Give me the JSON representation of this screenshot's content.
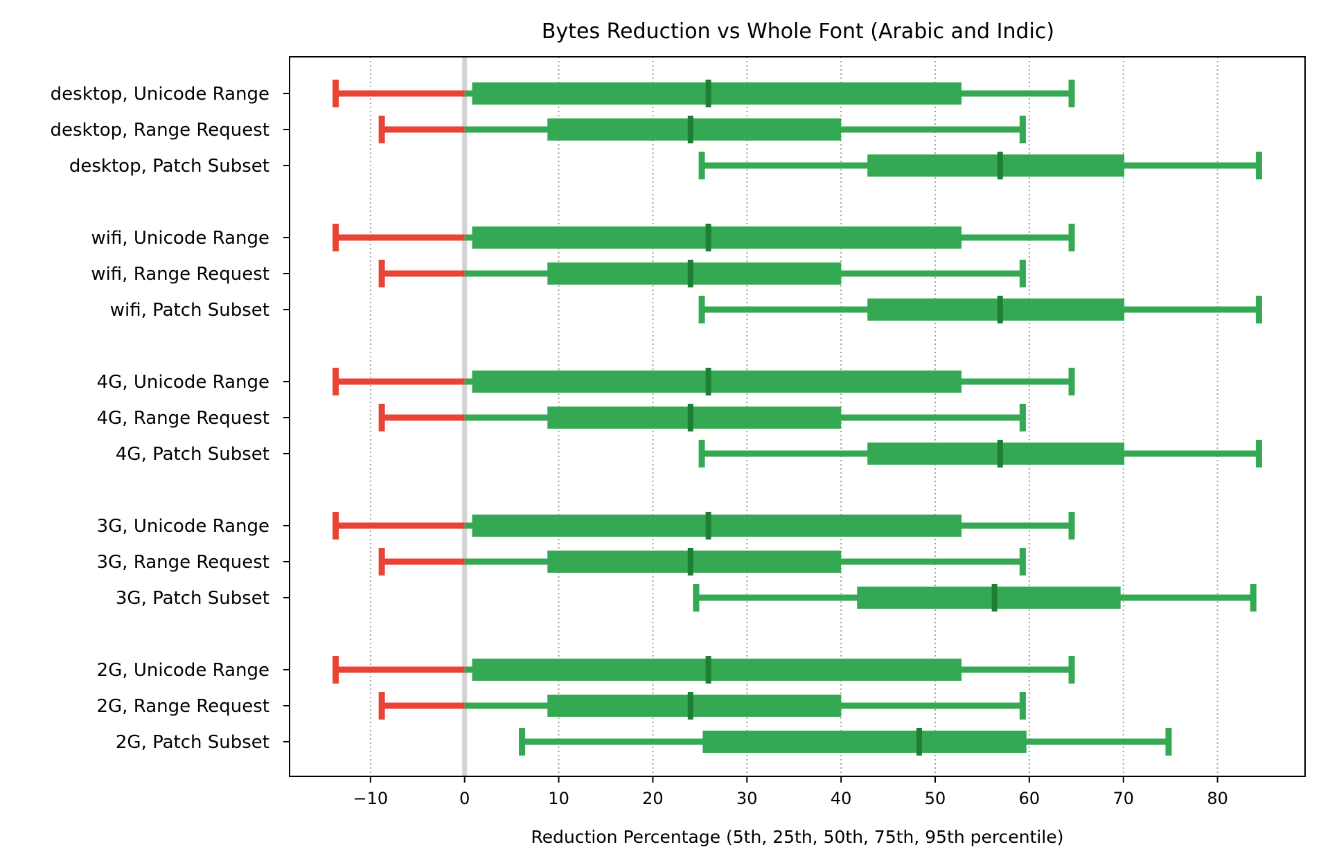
{
  "chart_data": {
    "type": "percentile-range",
    "title": "Bytes Reduction vs Whole Font (Arabic and Indic)",
    "xlabel": "Reduction Percentage (5th, 25th, 50th, 75th, 95th percentile)",
    "xlim": [
      -18.6,
      89.3
    ],
    "xticks": [
      -10,
      0,
      10,
      20,
      30,
      40,
      50,
      60,
      70,
      80
    ],
    "xtick_labels": [
      "−10",
      "0",
      "10",
      "20",
      "30",
      "40",
      "50",
      "60",
      "70",
      "80"
    ],
    "grid": "vertical dotted",
    "colors": {
      "positive": "#34a853",
      "negative": "#ea4335",
      "median": "#1e7e34",
      "zero_line": "#d3d3d3",
      "grid": "#a0a0a0"
    },
    "rows": [
      {
        "label": "desktop, Unicode Range",
        "p5": -13.7,
        "p25": 0.8,
        "p50": 25.9,
        "p75": 52.8,
        "p95": 64.5
      },
      {
        "label": "desktop, Range Request",
        "p5": -8.8,
        "p25": 8.8,
        "p50": 24.0,
        "p75": 40.0,
        "p95": 59.3
      },
      {
        "label": "desktop, Patch Subset",
        "p5": 25.2,
        "p25": 42.8,
        "p50": 56.9,
        "p75": 70.1,
        "p95": 84.4
      },
      {
        "label": "wifi, Unicode Range",
        "p5": -13.7,
        "p25": 0.8,
        "p50": 25.9,
        "p75": 52.8,
        "p95": 64.5
      },
      {
        "label": "wifi, Range Request",
        "p5": -8.8,
        "p25": 8.8,
        "p50": 24.0,
        "p75": 40.0,
        "p95": 59.3
      },
      {
        "label": "wifi, Patch Subset",
        "p5": 25.2,
        "p25": 42.8,
        "p50": 56.9,
        "p75": 70.1,
        "p95": 84.4
      },
      {
        "label": "4G, Unicode Range",
        "p5": -13.7,
        "p25": 0.8,
        "p50": 25.9,
        "p75": 52.8,
        "p95": 64.5
      },
      {
        "label": "4G, Range Request",
        "p5": -8.8,
        "p25": 8.8,
        "p50": 24.0,
        "p75": 40.0,
        "p95": 59.3
      },
      {
        "label": "4G, Patch Subset",
        "p5": 25.2,
        "p25": 42.8,
        "p50": 56.9,
        "p75": 70.1,
        "p95": 84.4
      },
      {
        "label": "3G, Unicode Range",
        "p5": -13.7,
        "p25": 0.8,
        "p50": 25.9,
        "p75": 52.8,
        "p95": 64.5
      },
      {
        "label": "3G, Range Request",
        "p5": -8.8,
        "p25": 8.8,
        "p50": 24.0,
        "p75": 40.0,
        "p95": 59.3
      },
      {
        "label": "3G, Patch Subset",
        "p5": 24.6,
        "p25": 41.7,
        "p50": 56.3,
        "p75": 69.7,
        "p95": 83.8
      },
      {
        "label": "2G, Unicode Range",
        "p5": -13.7,
        "p25": 0.8,
        "p50": 25.9,
        "p75": 52.8,
        "p95": 64.5
      },
      {
        "label": "2G, Range Request",
        "p5": -8.8,
        "p25": 8.8,
        "p50": 24.0,
        "p75": 40.0,
        "p95": 59.3
      },
      {
        "label": "2G, Patch Subset",
        "p5": 6.1,
        "p25": 25.3,
        "p50": 48.3,
        "p75": 59.7,
        "p95": 74.8
      }
    ]
  }
}
